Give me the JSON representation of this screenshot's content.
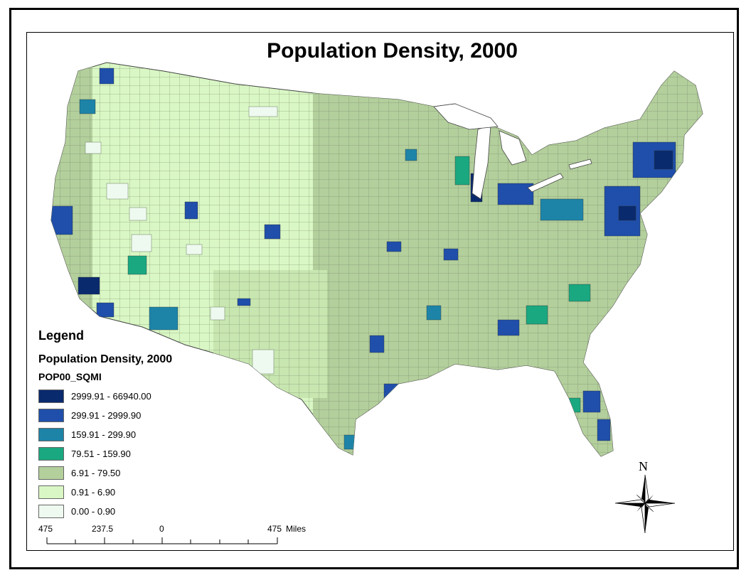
{
  "title": "Population Density, 2000",
  "legend": {
    "heading": "Legend",
    "subtitle": "Population Density, 2000",
    "field": "POP00_SQMI",
    "classes": [
      {
        "label": "2999.91 - 66940.00",
        "color": "#0a2a6e"
      },
      {
        "label": "299.91 - 2999.90",
        "color": "#1f4faa"
      },
      {
        "label": "159.91 - 299.90",
        "color": "#1d84a8"
      },
      {
        "label": "79.51 - 159.90",
        "color": "#1aa880"
      },
      {
        "label": "6.91 - 79.50",
        "color": "#b3cf9c"
      },
      {
        "label": "0.91 - 6.90",
        "color": "#d9f7c4"
      },
      {
        "label": "0.00 - 0.90",
        "color": "#eefaf0"
      }
    ]
  },
  "scalebar": {
    "labels": [
      "475",
      "237.5",
      "0",
      "475"
    ],
    "units": "Miles"
  },
  "north_arrow": {
    "label": "N"
  }
}
